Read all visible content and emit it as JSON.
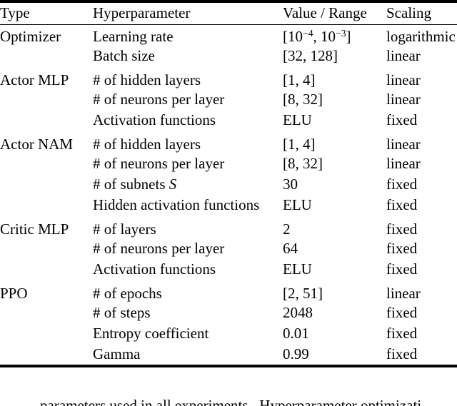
{
  "table": {
    "headers": [
      "Type",
      "Hyperparameter",
      "Value / Range",
      "Scaling"
    ],
    "sections": [
      {
        "type": "Optimizer",
        "rows": [
          {
            "hyperparameter": "Learning rate",
            "value": "[10^{−4}, 10^{−3}]",
            "scaling": "logarithmic"
          },
          {
            "hyperparameter": "Batch size",
            "value": "[32, 128]",
            "scaling": "linear"
          }
        ]
      },
      {
        "type": "Actor MLP",
        "rows": [
          {
            "hyperparameter": "# of hidden layers",
            "value": "[1, 4]",
            "scaling": "linear"
          },
          {
            "hyperparameter": "# of neurons per layer",
            "value": "[8, 32]",
            "scaling": "linear"
          },
          {
            "hyperparameter": "Activation functions",
            "value": "ELU",
            "scaling": "fixed"
          }
        ]
      },
      {
        "type": "Actor NAM",
        "rows": [
          {
            "hyperparameter": "# of hidden layers",
            "value": "[1, 4]",
            "scaling": "linear"
          },
          {
            "hyperparameter": "# of neurons per layer",
            "value": "[8, 32]",
            "scaling": "linear"
          },
          {
            "hyperparameter": "# of subnets *S*",
            "value": "30",
            "scaling": "fixed"
          },
          {
            "hyperparameter": "Hidden activation functions",
            "value": "ELU",
            "scaling": "fixed"
          }
        ]
      },
      {
        "type": "Critic MLP",
        "rows": [
          {
            "hyperparameter": "# of layers",
            "value": "2",
            "scaling": "fixed"
          },
          {
            "hyperparameter": "# of neurons per layer",
            "value": "64",
            "scaling": "fixed"
          },
          {
            "hyperparameter": "Activation functions",
            "value": "ELU",
            "scaling": "fixed"
          }
        ]
      },
      {
        "type": "PPO",
        "rows": [
          {
            "hyperparameter": "# of epochs",
            "value": "[2, 51]",
            "scaling": "linear"
          },
          {
            "hyperparameter": "# of steps",
            "value": "2048",
            "scaling": "fixed"
          },
          {
            "hyperparameter": "Entropy coefficient",
            "value": "0.01",
            "scaling": "fixed"
          },
          {
            "hyperparameter": "Gamma",
            "value": "0.99",
            "scaling": "fixed"
          }
        ]
      }
    ]
  },
  "caption_fragment": "parameters used in all experiments.  Hyperparameter optimizati",
  "colors": {
    "text": "#000000",
    "rule": "#000000",
    "background": "#ffffff"
  }
}
